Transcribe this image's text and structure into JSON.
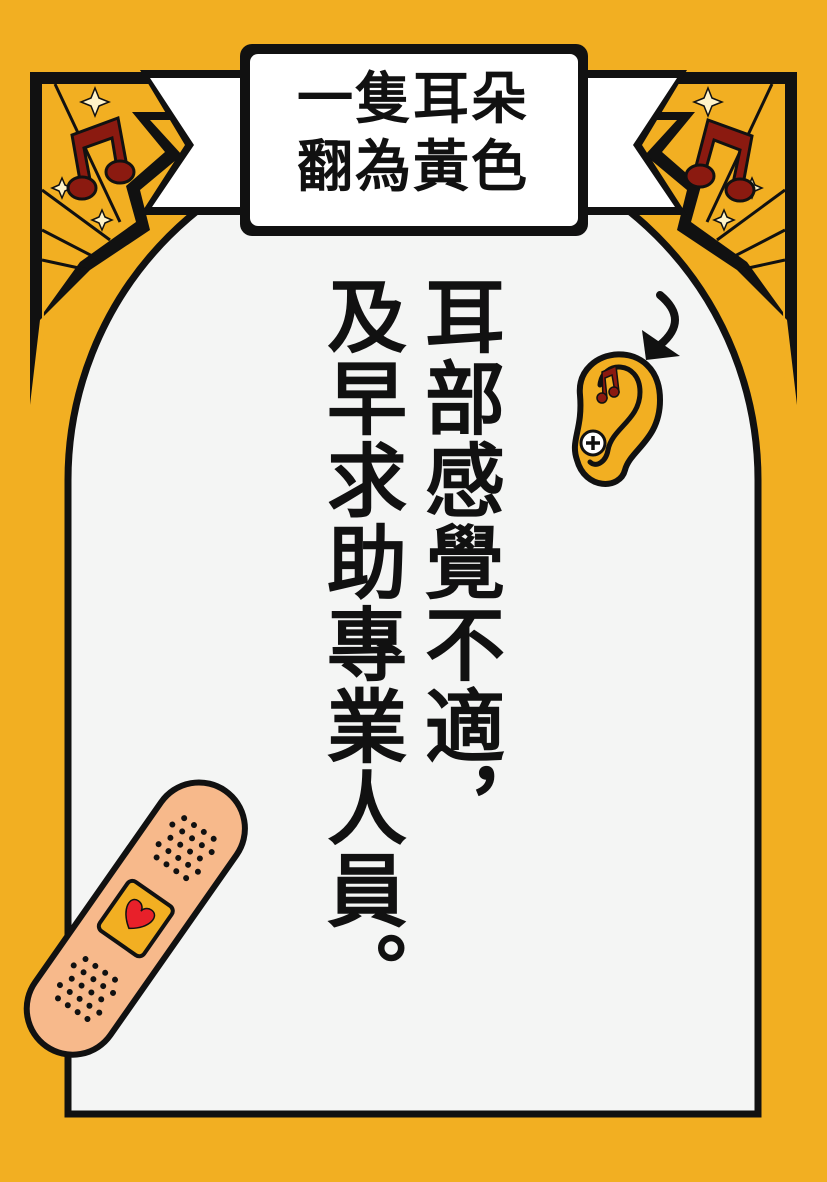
{
  "banner": {
    "line1": "一隻耳朵",
    "line2": "翻為黃色"
  },
  "message": {
    "line1": "耳部感覺不適，",
    "line2": "及早求助專業人員。"
  },
  "colors": {
    "background": "#F2AF22",
    "panel": "#F4F5F4",
    "outline": "#111111",
    "note": "#8B1A10",
    "bandage": "#F7B98B",
    "heart": "#E8202A"
  },
  "icons": [
    "music-note-icon",
    "sparkle-icon",
    "ear-icon",
    "plus-icon",
    "arrow-icon",
    "bandage-icon",
    "heart-icon"
  ]
}
